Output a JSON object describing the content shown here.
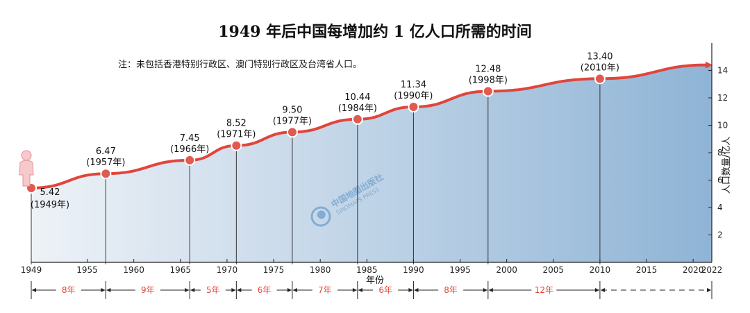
{
  "chart_data": {
    "type": "area",
    "title": "1949 年后中国每增加约 1 亿人口所需的时间",
    "note": "注：未包括香港特别行政区、澳门特别行政区及台湾省人口。",
    "xlabel": "年份",
    "ylabel": "人口数量/亿人",
    "xlim": [
      1949,
      2022
    ],
    "ylim": [
      0,
      16
    ],
    "grid": false,
    "x_ticks": [
      "1949",
      "1955",
      "1960",
      "1965",
      "1970",
      "1975",
      "1980",
      "1985",
      "1990",
      "1995",
      "2000",
      "2005",
      "2010",
      "2015",
      "2020",
      "2022"
    ],
    "y_ticks": [
      "2",
      "4",
      "6",
      "8",
      "10",
      "12",
      "14"
    ],
    "series": [
      {
        "points": [
          {
            "x": 1949,
            "y": 5.42,
            "value_label": "5.42",
            "year_label": "(1949年)"
          },
          {
            "x": 1957,
            "y": 6.47,
            "value_label": "6.47",
            "year_label": "(1957年)"
          },
          {
            "x": 1966,
            "y": 7.45,
            "value_label": "7.45",
            "year_label": "(1966年)"
          },
          {
            "x": 1971,
            "y": 8.52,
            "value_label": "8.52",
            "year_label": "(1971年)"
          },
          {
            "x": 1977,
            "y": 9.5,
            "value_label": "9.50",
            "year_label": "(1977年)"
          },
          {
            "x": 1984,
            "y": 10.44,
            "value_label": "10.44",
            "year_label": "(1984年)"
          },
          {
            "x": 1990,
            "y": 11.34,
            "value_label": "11.34",
            "year_label": "(1990年)"
          },
          {
            "x": 1998,
            "y": 12.48,
            "value_label": "12.48",
            "year_label": "(1998年)"
          },
          {
            "x": 2010,
            "y": 13.4,
            "value_label": "13.40",
            "year_label": "(2010年)"
          }
        ]
      }
    ],
    "intervals": [
      {
        "from": 1949,
        "to": 1957,
        "label": "8年"
      },
      {
        "from": 1957,
        "to": 1966,
        "label": "9年"
      },
      {
        "from": 1966,
        "to": 1971,
        "label": "5年"
      },
      {
        "from": 1971,
        "to": 1977,
        "label": "6年"
      },
      {
        "from": 1977,
        "to": 1984,
        "label": "7年"
      },
      {
        "from": 1984,
        "to": 1990,
        "label": "6年"
      },
      {
        "from": 1990,
        "to": 1998,
        "label": "8年"
      },
      {
        "from": 1998,
        "to": 2010,
        "label": "12年"
      },
      {
        "from": 2010,
        "to": 2022,
        "label": ""
      }
    ],
    "colors": {
      "line": "#e0463b",
      "point": "#e05a50",
      "area_light": "#eef2f7",
      "area_dark": "#8fb4d6",
      "interval_text": "#e0463b"
    },
    "watermark": {
      "cn": "中国地图出版社",
      "en": "SINOMAPS PRESS"
    }
  }
}
